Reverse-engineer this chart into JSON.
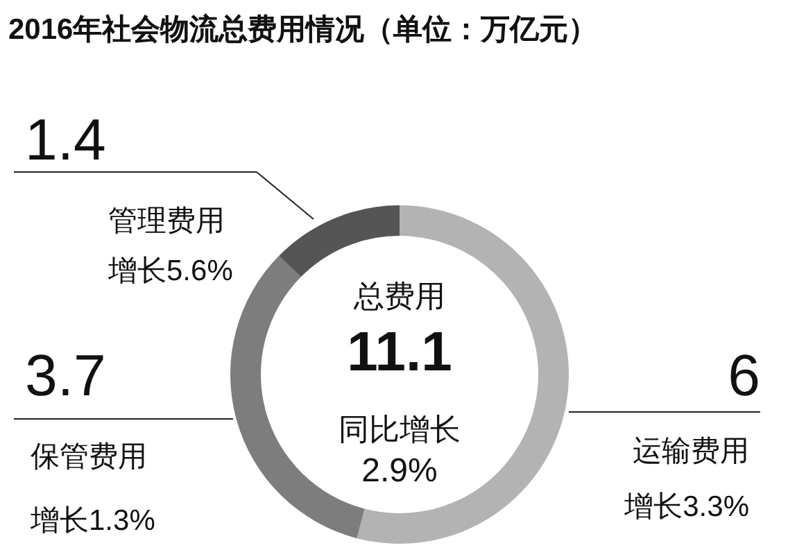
{
  "chart_data": {
    "type": "donut",
    "title": "2016年社会物流总费用情况（单位：万亿元）",
    "categories": [
      "运输费用",
      "保管费用",
      "管理费用"
    ],
    "values": [
      6,
      3.7,
      1.4
    ],
    "colors": [
      "#b3b3b3",
      "#7d7d7d",
      "#555555"
    ],
    "data_labels": true,
    "annotations": [
      "总费用",
      "11.1",
      "同比增长",
      "2.9%",
      "增长3.3%",
      "增长1.3%",
      "增长5.6%"
    ]
  }
}
